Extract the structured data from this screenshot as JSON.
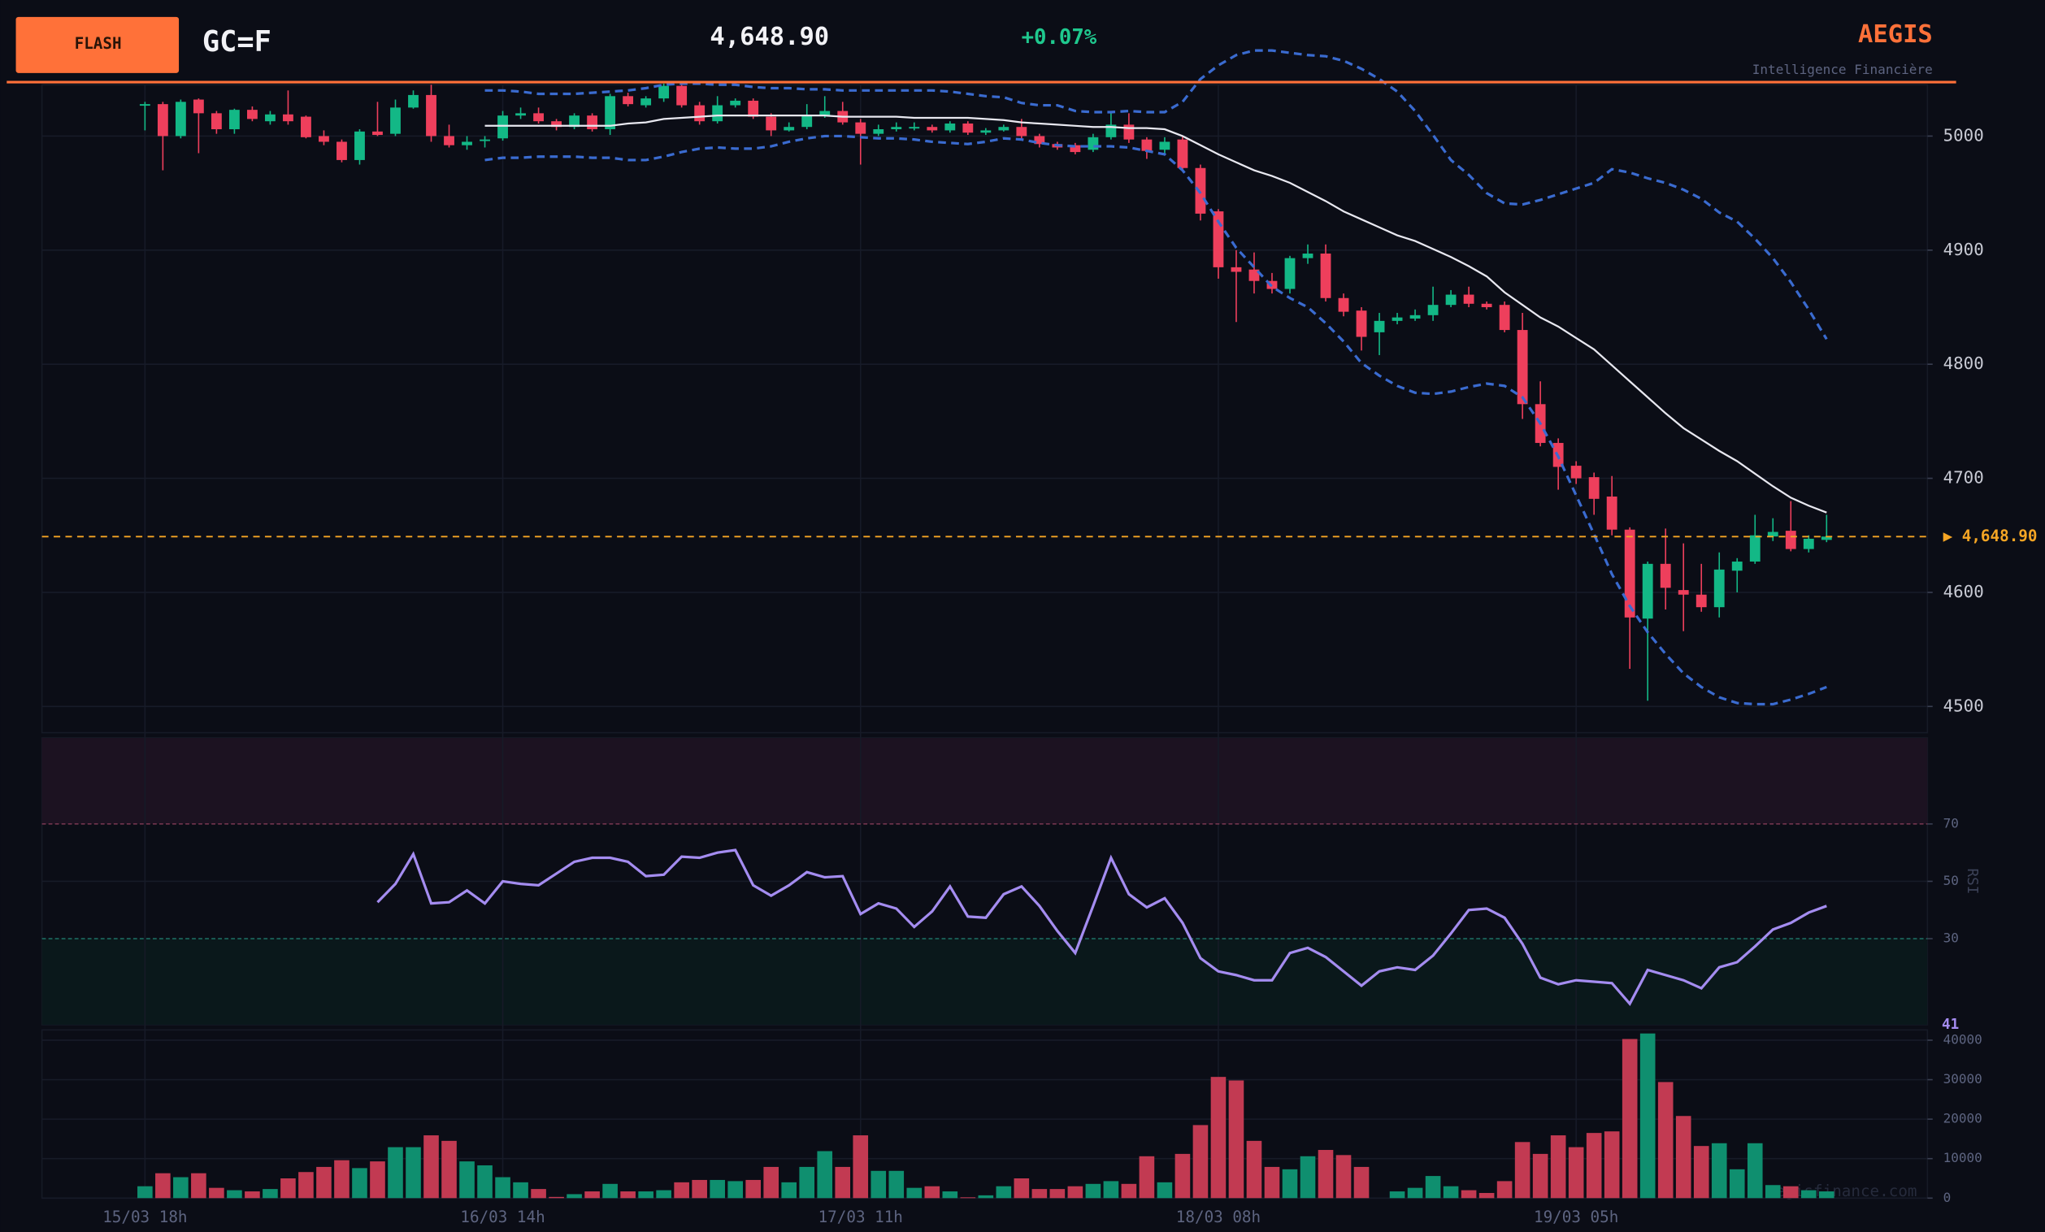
{
  "header": {
    "button": "FLASH",
    "symbol": "GC=F",
    "price": "4,648.90",
    "change": "+0.07%",
    "brand": "AEGIS",
    "tagline": "Intelligence Financière",
    "watermark": "aegisfinance.com"
  },
  "chart_data": [
    {
      "type": "candlestick",
      "categories": [
        "15/03 18h",
        null,
        null,
        null,
        null,
        null,
        null,
        null,
        null,
        null,
        null,
        null,
        null,
        null,
        null,
        null,
        null,
        null,
        null,
        null,
        "16/03 14h",
        null,
        null,
        null,
        null,
        null,
        null,
        null,
        null,
        null,
        null,
        null,
        null,
        null,
        null,
        null,
        null,
        null,
        null,
        null,
        "17/03 11h",
        null,
        null,
        null,
        null,
        null,
        null,
        null,
        null,
        null,
        null,
        null,
        null,
        null,
        null,
        null,
        null,
        null,
        null,
        null,
        "18/03 08h",
        null,
        null,
        null,
        null,
        null,
        null,
        null,
        null,
        null,
        null,
        null,
        null,
        null,
        null,
        null,
        null,
        null,
        null,
        null,
        "19/03 05h",
        null,
        null,
        null,
        null,
        null,
        null,
        null,
        null,
        null,
        null,
        null,
        null,
        null,
        null
      ],
      "open": [
        5027,
        5028,
        5000,
        5032,
        5020,
        5006,
        5023,
        5013,
        5019,
        5017,
        5000,
        4995,
        4979,
        5004,
        5002,
        5025,
        5036,
        5000,
        4992,
        4996,
        4998,
        5018,
        5020,
        5013,
        5008,
        5018,
        5006,
        5035,
        5027,
        5033,
        5044,
        5027,
        5013,
        5027,
        5031,
        5017,
        5005,
        5008,
        5018,
        5022,
        5012,
        5002,
        5006,
        5007,
        5008,
        5005,
        5011,
        5003,
        5005,
        5008,
        5000,
        4993,
        4992,
        4988,
        4999,
        5010,
        4997,
        4988,
        4997,
        4972,
        4934,
        4885,
        4883,
        4873,
        4866,
        4893,
        4897,
        4858,
        4847,
        4828,
        4838,
        4840,
        4843,
        4852,
        4861,
        4853,
        4852,
        4830,
        4765,
        4731,
        4711,
        4701,
        4684,
        4655,
        4577,
        4625,
        4602,
        4598,
        4587,
        4619,
        4627,
        4649,
        4654,
        4638,
        4646
      ],
      "high": [
        5030,
        5030,
        5032,
        5033,
        5022,
        5024,
        5026,
        5022,
        5040,
        5018,
        5005,
        4997,
        5006,
        5030,
        5032,
        5040,
        5045,
        5010,
        5000,
        5000,
        5022,
        5025,
        5025,
        5015,
        5020,
        5020,
        5037,
        5038,
        5035,
        5046,
        5048,
        5030,
        5035,
        5033,
        5033,
        5020,
        5012,
        5028,
        5035,
        5030,
        5015,
        5010,
        5012,
        5012,
        5010,
        5013,
        5013,
        5007,
        5010,
        5015,
        5002,
        4995,
        4994,
        5002,
        5020,
        5020,
        4999,
        4999,
        5000,
        4975,
        4936,
        4900,
        4898,
        4880,
        4895,
        4905,
        4905,
        4862,
        4850,
        4845,
        4845,
        4848,
        4868,
        4865,
        4868,
        4855,
        4855,
        4845,
        4785,
        4735,
        4715,
        4705,
        4702,
        4657,
        4627,
        4656,
        4643,
        4625,
        4635,
        4630,
        4668,
        4665,
        4680,
        4650,
        4668
      ],
      "low": [
        5005,
        4970,
        4998,
        4985,
        5002,
        5002,
        5013,
        5010,
        5010,
        4998,
        4992,
        4977,
        4975,
        5000,
        5000,
        5024,
        4995,
        4990,
        4988,
        4990,
        4996,
        5015,
        5011,
        5005,
        5006,
        5004,
        5001,
        5026,
        5025,
        5030,
        5025,
        5010,
        5011,
        5025,
        5015,
        5000,
        5004,
        5006,
        5016,
        5010,
        4975,
        5000,
        5004,
        5005,
        5003,
        5003,
        5001,
        5001,
        5004,
        4998,
        4990,
        4988,
        4984,
        4986,
        4997,
        4994,
        4980,
        4984,
        4970,
        4926,
        4875,
        4837,
        4862,
        4862,
        4862,
        4888,
        4855,
        4842,
        4812,
        4808,
        4835,
        4838,
        4838,
        4850,
        4850,
        4848,
        4828,
        4752,
        4728,
        4690,
        4695,
        4668,
        4650,
        4533,
        4505,
        4585,
        4566,
        4583,
        4578,
        4600,
        4625,
        4645,
        4636,
        4635,
        4644
      ],
      "close": [
        5028,
        5000,
        5030,
        5020,
        5006,
        5023,
        5015,
        5019,
        5013,
        4999,
        4995,
        4979,
        5004,
        5001,
        5025,
        5036,
        5000,
        4992,
        4995,
        4997,
        5018,
        5020,
        5013,
        5008,
        5018,
        5006,
        5035,
        5028,
        5033,
        5044,
        5027,
        5013,
        5027,
        5031,
        5017,
        5005,
        5008,
        5018,
        5022,
        5012,
        5002,
        5006,
        5008,
        5008,
        5005,
        5011,
        5003,
        5005,
        5008,
        5000,
        4993,
        4990,
        4986,
        4999,
        5010,
        4997,
        4987,
        4995,
        4972,
        4932,
        4885,
        4881,
        4873,
        4866,
        4893,
        4897,
        4858,
        4846,
        4824,
        4838,
        4841,
        4843,
        4852,
        4861,
        4853,
        4850,
        4830,
        4765,
        4731,
        4710,
        4700,
        4682,
        4655,
        4578,
        4625,
        4604,
        4598,
        4587,
        4620,
        4627,
        4650,
        4653,
        4638,
        4647,
        4648.9
      ],
      "up_color": "#13b886",
      "down_color": "#ee3f5c",
      "ylim": [
        4477,
        5045
      ],
      "yticks": [
        4500,
        4600,
        4700,
        4800,
        4900,
        5000
      ],
      "grid": true,
      "overlays": [
        {
          "color": "#3a6bd0",
          "dash": true,
          "values": [
            null,
            null,
            null,
            null,
            null,
            null,
            null,
            null,
            null,
            null,
            null,
            null,
            null,
            null,
            null,
            null,
            null,
            null,
            null,
            5040,
            5040,
            5039,
            5037,
            5037,
            5037,
            5038,
            5039,
            5040,
            5042,
            5045,
            5046,
            5046,
            5045,
            5045,
            5043,
            5042,
            5042,
            5041,
            5041,
            5040,
            5040,
            5040,
            5040,
            5040,
            5040,
            5039,
            5037,
            5035,
            5034,
            5029,
            5027,
            5027,
            5022,
            5021,
            5021,
            5022,
            5021,
            5021,
            5030,
            5050,
            5062,
            5071,
            5075,
            5075,
            5073,
            5071,
            5070,
            5066,
            5059,
            5050,
            5039,
            5022,
            5001,
            4979,
            4966,
            4950,
            4941,
            4940,
            4944,
            4949,
            4954,
            4959,
            4971,
            4968,
            4963,
            4959,
            4953,
            4945,
            4933,
            4925,
            4910,
            4893,
            4872,
            4848,
            4822
          ]
        },
        {
          "color": "#e8e8f0",
          "dash": false,
          "values": [
            null,
            null,
            null,
            null,
            null,
            null,
            null,
            null,
            null,
            null,
            null,
            null,
            null,
            null,
            null,
            null,
            null,
            null,
            null,
            5009,
            5009,
            5009,
            5009,
            5009,
            5009,
            5009,
            5009,
            5011,
            5012,
            5015,
            5016,
            5017,
            5018,
            5018,
            5018,
            5018,
            5018,
            5018,
            5018,
            5017,
            5017,
            5017,
            5017,
            5016,
            5016,
            5016,
            5016,
            5015,
            5014,
            5012,
            5011,
            5010,
            5009,
            5008,
            5008,
            5007,
            5007,
            5006,
            5000,
            4992,
            4984,
            4977,
            4970,
            4965,
            4959,
            4951,
            4943,
            4934,
            4927,
            4920,
            4913,
            4908,
            4901,
            4894,
            4886,
            4877,
            4863,
            4852,
            4841,
            4833,
            4823,
            4813,
            4799,
            4785,
            4771,
            4757,
            4744,
            4734,
            4724,
            4715,
            4704,
            4693,
            4683,
            4676,
            4670
          ]
        },
        {
          "color": "#3a6bd0",
          "dash": true,
          "values": [
            null,
            null,
            null,
            null,
            null,
            null,
            null,
            null,
            null,
            null,
            null,
            null,
            null,
            null,
            null,
            null,
            null,
            null,
            null,
            4979,
            4981,
            4981,
            4982,
            4982,
            4982,
            4981,
            4981,
            4979,
            4979,
            4982,
            4986,
            4989,
            4990,
            4989,
            4989,
            4991,
            4995,
            4998,
            5000,
            5000,
            4999,
            4998,
            4998,
            4997,
            4995,
            4994,
            4993,
            4995,
            4998,
            4997,
            4994,
            4992,
            4991,
            4991,
            4991,
            4990,
            4987,
            4984,
            4970,
            4950,
            4925,
            4902,
            4885,
            4868,
            4858,
            4850,
            4836,
            4820,
            4801,
            4790,
            4781,
            4775,
            4774,
            4776,
            4780,
            4783,
            4781,
            4771,
            4748,
            4719,
            4685,
            4651,
            4616,
            4588,
            4565,
            4546,
            4529,
            4517,
            4508,
            4503,
            4502,
            4502,
            4506,
            4511,
            4517
          ]
        }
      ],
      "last_price": 4648.9,
      "last_price_label": "▶ 4,648.90",
      "last_price_color": "#f5a524"
    },
    {
      "type": "line",
      "ylabel": "RSI",
      "color": "#a48cf0",
      "values": [
        null,
        null,
        null,
        null,
        null,
        null,
        null,
        null,
        null,
        null,
        null,
        null,
        null,
        42.7,
        49.1,
        59.5,
        42.3,
        42.7,
        46.8,
        42.3,
        50,
        49.1,
        48.6,
        52.7,
        56.8,
        58.2,
        58.2,
        56.8,
        51.8,
        52.3,
        58.6,
        58.2,
        60,
        60.9,
        48.6,
        45,
        48.6,
        53.2,
        51.4,
        51.8,
        38.6,
        42.3,
        40.5,
        34.1,
        39.5,
        48.2,
        37.7,
        37.3,
        45.5,
        48.2,
        41.4,
        32.7,
        25,
        41.4,
        58.2,
        45.5,
        40.9,
        44.1,
        35.5,
        23.2,
        18.6,
        17.3,
        15.5,
        15.5,
        25,
        26.8,
        23.6,
        18.6,
        13.6,
        18.6,
        20,
        19.1,
        24.1,
        31.8,
        40,
        40.5,
        37.3,
        28.2,
        16.4,
        14.1,
        15.5,
        15,
        14.5,
        7.3,
        19.1,
        17.3,
        15.5,
        12.7,
        20,
        21.8,
        27.3,
        33.2,
        35.5,
        39.1,
        41.4
      ],
      "ylim": [
        0,
        100
      ],
      "yticks": [
        30,
        50,
        70
      ],
      "bands": [
        {
          "from": 70,
          "to": 100,
          "fill": "#1c1221",
          "line": "#7a3852"
        },
        {
          "from": 0,
          "to": 30,
          "fill": "#0a181b",
          "line": "#1d6b60"
        }
      ],
      "last_value_label": "41"
    },
    {
      "type": "bar",
      "values": [
        3000,
        6300,
        5300,
        6300,
        2600,
        2000,
        1700,
        2300,
        5000,
        6600,
        7900,
        9600,
        7600,
        9300,
        12900,
        12900,
        15900,
        14500,
        9300,
        8300,
        5300,
        4000,
        2300,
        300,
        1000,
        1700,
        3600,
        1700,
        1700,
        2000,
        4000,
        4600,
        4600,
        4300,
        4600,
        7900,
        4000,
        7900,
        11900,
        7900,
        15900,
        6900,
        6900,
        2600,
        3000,
        1700,
        200,
        700,
        3000,
        5000,
        2300,
        2300,
        3000,
        3600,
        4300,
        3600,
        10600,
        4000,
        11200,
        18500,
        30700,
        29800,
        14500,
        7900,
        7300,
        10600,
        12200,
        10900,
        7900,
        0,
        1700,
        2600,
        5600,
        3000,
        2000,
        1300,
        4300,
        14200,
        11200,
        15900,
        12900,
        16500,
        16900,
        40300,
        41700,
        29400,
        20800,
        13200,
        13900,
        7300,
        13900,
        3300,
        3000,
        2000,
        1700
      ],
      "ylim": [
        0,
        42600
      ],
      "yticks": [
        0,
        10000,
        20000,
        30000,
        40000
      ],
      "grid": true,
      "up_color": "#0f8f6f",
      "down_color": "#c23a52"
    }
  ]
}
